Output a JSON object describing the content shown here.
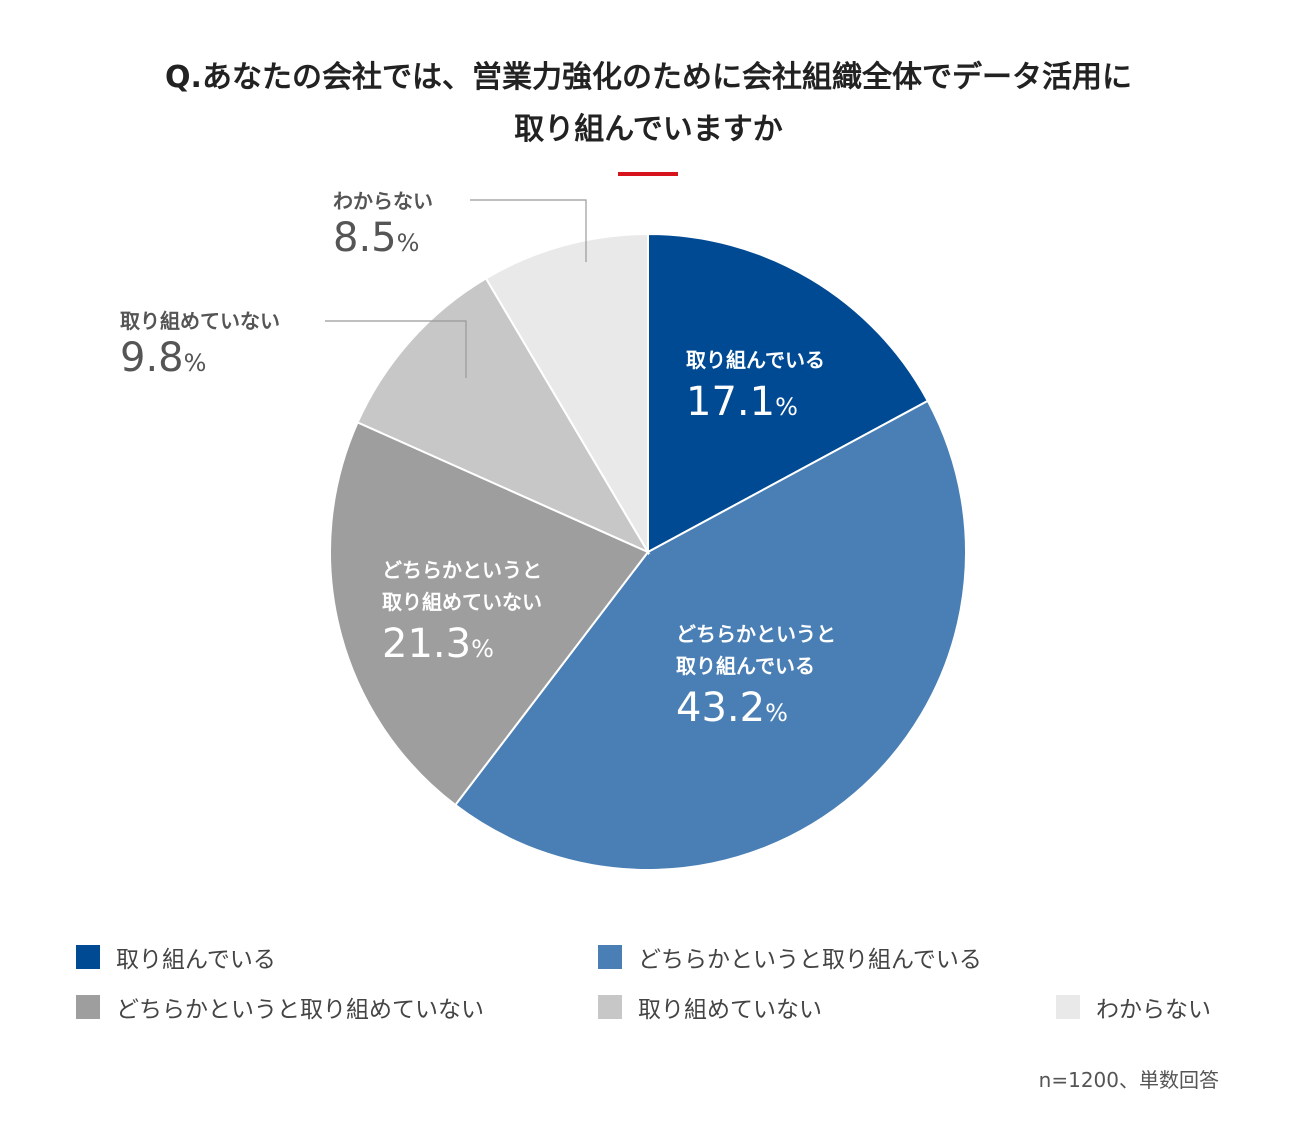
{
  "title_lines": [
    "Q.あなたの会社では、営業力強化のために会社組織全体でデータ活用に",
    "取り組んでいますか"
  ],
  "accent_color": "#d7141e",
  "chart_data": {
    "type": "pie",
    "title": "Q.あなたの会社では、営業力強化のために会社組織全体でデータ活用に取り組んでいますか",
    "unit": "%",
    "slices": [
      {
        "label": "取り組んでいる",
        "label_lines": [
          "取り組んでいる"
        ],
        "value": 17.1,
        "value_text": "17.1",
        "color": "#004a93"
      },
      {
        "label": "どちらかというと取り組んでいる",
        "label_lines": [
          "どちらかというと",
          "取り組んでいる"
        ],
        "value": 43.2,
        "value_text": "43.2",
        "color": "#4a7fb5"
      },
      {
        "label": "どちらかというと取り組めていない",
        "label_lines": [
          "どちらかというと",
          "取り組めていない"
        ],
        "value": 21.3,
        "value_text": "21.3",
        "color": "#9e9e9e"
      },
      {
        "label": "取り組めていない",
        "label_lines": [
          "取り組めていない"
        ],
        "value": 9.8,
        "value_text": "9.8",
        "color": "#c7c7c7"
      },
      {
        "label": "わからない",
        "label_lines": [
          "わからない"
        ],
        "value": 8.5,
        "value_text": "8.5",
        "color": "#e9e9e9"
      }
    ],
    "legend": [
      "取り組んでいる",
      "どちらかというと取り組んでいる",
      "どちらかというと取り組めていない",
      "取り組めていない",
      "わからない"
    ],
    "legend_placement": "bottom"
  },
  "footnote": "n=1200、単数回答"
}
